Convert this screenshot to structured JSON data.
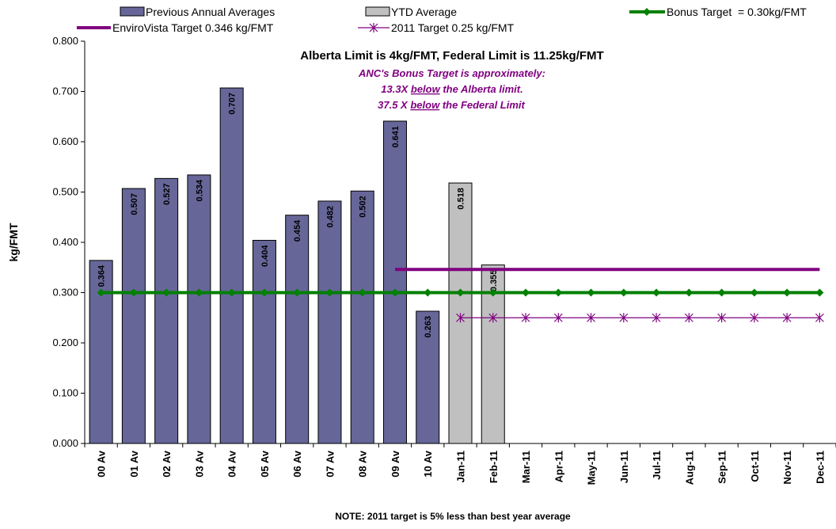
{
  "chart_data": {
    "type": "bar",
    "categories": [
      "00 Av",
      "01 Av",
      "02 Av",
      "03 Av",
      "04 Av",
      "05 Av",
      "06 Av",
      "07 Av",
      "08 Av",
      "09 Av",
      "10 Av",
      "Jan-11",
      "Feb-11",
      "Mar-11",
      "Apr-11",
      "May-11",
      "Jun-11",
      "Jul-11",
      "Aug-11",
      "Sep-11",
      "Oct-11",
      "Nov-11",
      "Dec-11"
    ],
    "series": [
      {
        "name": "Previous Annual Averages",
        "kind": "bar",
        "color": "#666699",
        "values": [
          0.364,
          0.507,
          0.527,
          0.534,
          0.707,
          0.404,
          0.454,
          0.482,
          0.502,
          0.641,
          0.263,
          null,
          null,
          null,
          null,
          null,
          null,
          null,
          null,
          null,
          null,
          null,
          null
        ],
        "labels": [
          "0.364",
          "0.507",
          "0.527",
          "0.534",
          "0.707",
          "0.404",
          "0.454",
          "0.482",
          "0.502",
          "0.641",
          "0.263"
        ]
      },
      {
        "name": "YTD Average",
        "kind": "bar",
        "color": "#c0c0c0",
        "values": [
          null,
          null,
          null,
          null,
          null,
          null,
          null,
          null,
          null,
          null,
          null,
          0.518,
          0.355,
          null,
          null,
          null,
          null,
          null,
          null,
          null,
          null,
          null,
          null
        ],
        "labels": [
          "0.518",
          "0.355"
        ]
      },
      {
        "name": "Bonus Target  = 0.30kg/FMT",
        "kind": "line",
        "marker": "diamond",
        "color": "#008000",
        "values": [
          0.3,
          0.3,
          0.3,
          0.3,
          0.3,
          0.3,
          0.3,
          0.3,
          0.3,
          0.3,
          0.3,
          0.3,
          0.3,
          0.3,
          0.3,
          0.3,
          0.3,
          0.3,
          0.3,
          0.3,
          0.3,
          0.3,
          0.3
        ]
      },
      {
        "name": "EnviroVista Target 0.346 kg/FMT",
        "kind": "line",
        "marker": "none",
        "color": "#800080",
        "values": [
          null,
          null,
          null,
          null,
          null,
          null,
          null,
          null,
          null,
          0.346,
          0.346,
          0.346,
          0.346,
          0.346,
          0.346,
          0.346,
          0.346,
          0.346,
          0.346,
          0.346,
          0.346,
          0.346,
          0.346
        ]
      },
      {
        "name": "2011 Target 0.25 kg/FMT",
        "kind": "line",
        "marker": "asterisk",
        "color": "#800080",
        "values": [
          null,
          null,
          null,
          null,
          null,
          null,
          null,
          null,
          null,
          null,
          null,
          0.25,
          0.25,
          0.25,
          0.25,
          0.25,
          0.25,
          0.25,
          0.25,
          0.25,
          0.25,
          0.25,
          0.25
        ]
      }
    ],
    "ylabel": "kg/FMT",
    "xlabel": "",
    "ylim": [
      0,
      0.8
    ],
    "yticks": [
      "0.000",
      "0.100",
      "0.200",
      "0.300",
      "0.400",
      "0.500",
      "0.600",
      "0.700",
      "0.800"
    ],
    "grid": false,
    "legend_position": "top",
    "annotations": {
      "title": "Alberta Limit is 4kg/FMT, Federal Limit is 11.25kg/FMT",
      "line1": "ANC's Bonus Target is approximately:",
      "line2_pre": "13.3X",
      "line2_u": "below",
      "line2_post": "the Alberta limit.",
      "line3_pre": "37.5 X",
      "line3_u": "below",
      "line3_post": "the Federal Limit"
    },
    "note": "NOTE: 2011 target is 5% less than best year average"
  }
}
